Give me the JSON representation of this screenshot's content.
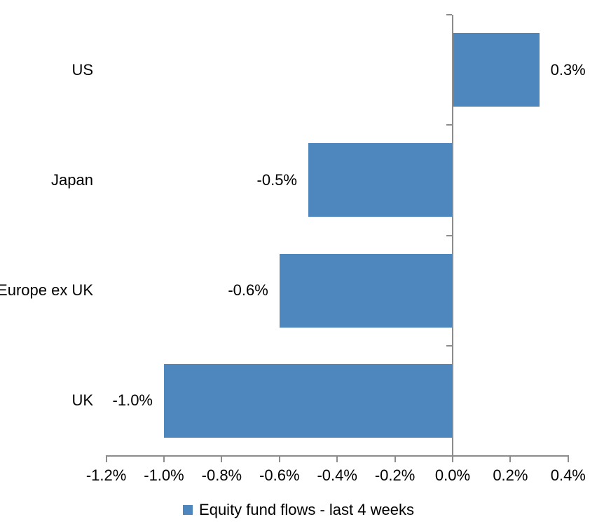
{
  "chart_data": {
    "type": "bar",
    "orientation": "horizontal",
    "title": "",
    "categories": [
      "US",
      "Japan",
      "Europe ex UK",
      "UK"
    ],
    "values": [
      0.3,
      -0.5,
      -0.6,
      -1.0
    ],
    "data_labels": [
      "0.3%",
      "-0.5%",
      "-0.6%",
      "-1.0%"
    ],
    "series": [
      {
        "name": "Equity fund flows - last 4 weeks",
        "values": [
          0.3,
          -0.5,
          -0.6,
          -1.0
        ]
      }
    ],
    "x_axis": {
      "min": -1.2,
      "max": 0.4,
      "unit": "%",
      "tick_values": [
        -1.2,
        -1.0,
        -0.8,
        -0.6,
        -0.4,
        -0.2,
        0.0,
        0.2,
        0.4
      ],
      "tick_labels": [
        "-1.2%",
        "-1.0%",
        "-0.8%",
        "-0.6%",
        "-0.4%",
        "-0.2%",
        "0.0%",
        "0.2%",
        "0.4%"
      ]
    },
    "grid": false,
    "legend": {
      "label": "Equity fund flows - last 4 weeks",
      "position": "bottom"
    },
    "colors": {
      "bar": "#4E87BE",
      "axis": "#8C8C8C",
      "text": "#000000",
      "background": "#FFFFFF"
    }
  }
}
